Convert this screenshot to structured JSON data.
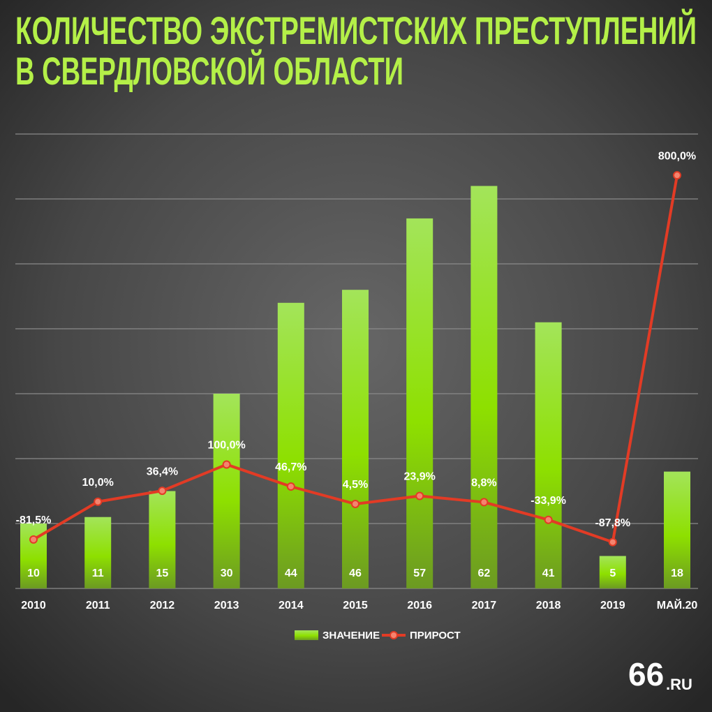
{
  "chart_data": {
    "type": "bar",
    "title": [
      "КОЛИЧЕСТВО ЭКСТРЕМИСТСКИХ ПРЕСТУПЛЕНИЙ",
      "В СВЕРДЛОВСКОЙ ОБЛАСТИ"
    ],
    "categories": [
      "2010",
      "2011",
      "2012",
      "2013",
      "2014",
      "2015",
      "2016",
      "2017",
      "2018",
      "2019",
      "МАЙ.20"
    ],
    "series": [
      {
        "name": "ЗНАЧЕНИЕ",
        "type": "bar",
        "color": "#8ee000",
        "values": [
          10,
          11,
          15,
          30,
          44,
          46,
          57,
          62,
          41,
          5,
          18
        ]
      },
      {
        "name": "ПРИРОСТ",
        "type": "line",
        "axis": "y2",
        "color": "#e23b25",
        "values": [
          -81.5,
          10,
          36.4,
          100,
          46.7,
          4.5,
          23.9,
          8.8,
          -33.9,
          -87.8,
          800
        ],
        "value_labels": [
          "-81,5%",
          "10,0%",
          "36,4%",
          "100,0%",
          "46,7%",
          "4,5%",
          "23,9%",
          "8,8%",
          "-33,9%",
          "-87,8%",
          "800,0%"
        ]
      }
    ],
    "ylim": [
      0,
      70
    ],
    "yticks": [
      0,
      10,
      20,
      30,
      40,
      50,
      60,
      70
    ],
    "y2lim": [
      -200,
      900
    ],
    "grid": true,
    "legend": "bottom"
  },
  "logo": {
    "number": "66",
    "suffix": ".RU"
  }
}
